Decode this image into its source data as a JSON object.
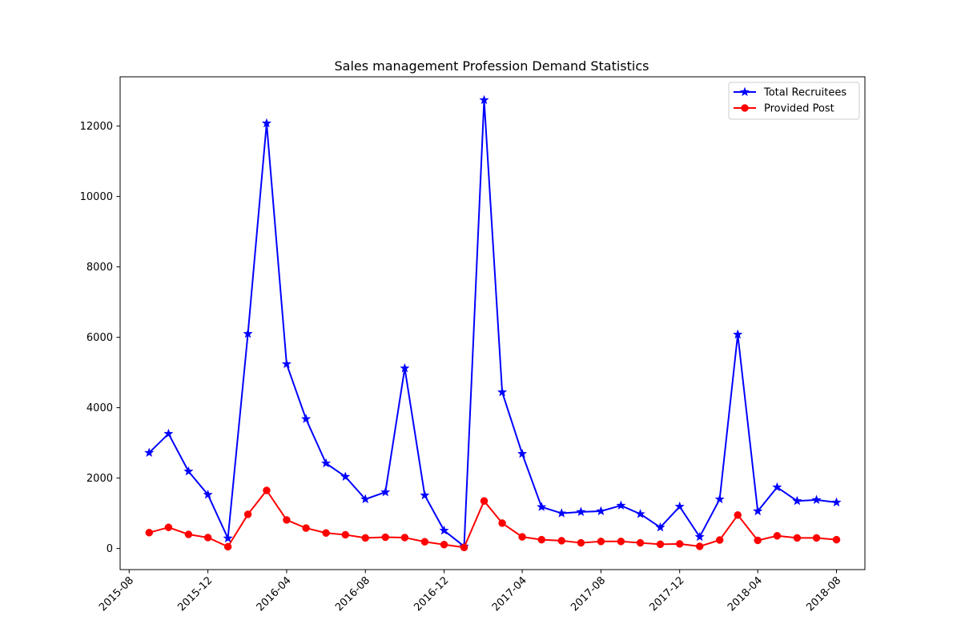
{
  "chart_data": {
    "type": "line",
    "title": "Sales management Profession Demand Statistics",
    "xlabel": "",
    "ylabel": "",
    "x": [
      "2015-09",
      "2015-10",
      "2015-11",
      "2015-12",
      "2016-01",
      "2016-02",
      "2016-03",
      "2016-04",
      "2016-05",
      "2016-06",
      "2016-07",
      "2016-08",
      "2016-09",
      "2016-10",
      "2016-11",
      "2016-12",
      "2017-01",
      "2017-02",
      "2017-03",
      "2017-04",
      "2017-05",
      "2017-06",
      "2017-07",
      "2017-08",
      "2017-09",
      "2017-10",
      "2017-11",
      "2017-12",
      "2018-01",
      "2018-02",
      "2018-03",
      "2018-04",
      "2018-05",
      "2018-06",
      "2018-07",
      "2018-08"
    ],
    "xlim": [
      "2015-07-18",
      "2018-09-14"
    ],
    "xticks": [
      "2015-08",
      "2015-12",
      "2016-04",
      "2016-08",
      "2016-12",
      "2017-04",
      "2017-08",
      "2017-12",
      "2018-04",
      "2018-08"
    ],
    "ylim": [
      -600,
      13400
    ],
    "yticks": [
      0,
      2000,
      4000,
      6000,
      8000,
      10000,
      12000
    ],
    "grid": false,
    "legend_position": "top-right",
    "series": [
      {
        "name": "Total Recruitees",
        "color": "#0000ff",
        "marker": "star",
        "values": [
          2720,
          3260,
          2190,
          1530,
          290,
          6100,
          12080,
          5240,
          3680,
          2420,
          2040,
          1400,
          1600,
          5120,
          1510,
          510,
          60,
          12740,
          4440,
          2690,
          1180,
          1000,
          1040,
          1060,
          1220,
          980,
          600,
          1190,
          330,
          1400,
          6080,
          1060,
          1740,
          1350,
          1380,
          1310
        ]
      },
      {
        "name": "Provided Post",
        "color": "#ff0000",
        "marker": "circle",
        "values": [
          450,
          600,
          400,
          310,
          50,
          970,
          1650,
          810,
          580,
          440,
          390,
          300,
          320,
          310,
          190,
          110,
          30,
          1350,
          720,
          330,
          250,
          220,
          160,
          200,
          200,
          160,
          120,
          130,
          60,
          240,
          950,
          230,
          360,
          300,
          300,
          250
        ]
      }
    ]
  }
}
